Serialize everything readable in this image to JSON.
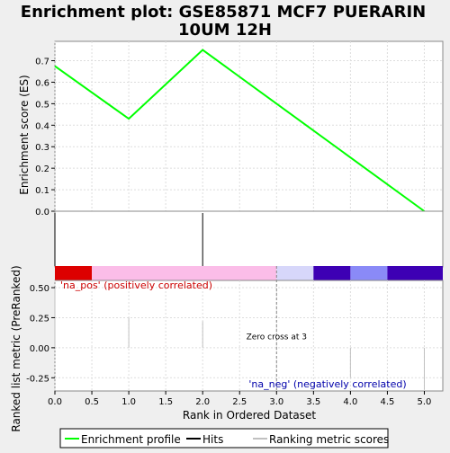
{
  "title_line1": "Enrichment plot: GSE85871 MCF7 PUERARIN",
  "title_line2": "10UM 12H",
  "chart_data": {
    "type": "line",
    "title": "Enrichment plot: GSE85871 MCF7 PUERARIN 10UM 12H",
    "xlabel": "Rank in Ordered Dataset",
    "x_ticks": [
      "0.0",
      "0.5",
      "1.0",
      "1.5",
      "2.0",
      "2.5",
      "3.0",
      "3.5",
      "4.0",
      "4.5",
      "5.0"
    ],
    "xlim": [
      0,
      5.25
    ],
    "grid": true,
    "legend_position": "bottom",
    "es_panel": {
      "ylabel": "Enrichment score (ES)",
      "y_ticks": [
        "0.0",
        "0.1",
        "0.2",
        "0.3",
        "0.4",
        "0.5",
        "0.6",
        "0.7"
      ],
      "ylim": [
        0,
        0.79
      ],
      "series": [
        {
          "name": "Enrichment profile",
          "color": "#00ff00",
          "x": [
            0,
            1,
            2,
            5
          ],
          "y": [
            0.675,
            0.43,
            0.75,
            0.0
          ]
        }
      ]
    },
    "hits_panel": {
      "hits": [
        0,
        2
      ],
      "color_bar": [
        {
          "from": 0,
          "to": 0.5,
          "color": "#dd0000"
        },
        {
          "from": 0.5,
          "to": 3.0,
          "color": "#fbbde8"
        },
        {
          "from": 3.0,
          "to": 3.5,
          "color": "#d7d7fa"
        },
        {
          "from": 3.5,
          "to": 4.0,
          "color": "#3d00b4"
        },
        {
          "from": 4.0,
          "to": 4.5,
          "color": "#8a8af7"
        },
        {
          "from": 4.5,
          "to": 5.25,
          "color": "#3d00b4"
        }
      ]
    },
    "metric_panel": {
      "ylabel": "Ranked list metric (PreRanked)",
      "y_ticks": [
        "0.50",
        "0.25",
        "0.00",
        "-0.25"
      ],
      "ylim": [
        -0.36,
        0.56
      ],
      "bars": {
        "x": [
          0,
          1,
          2,
          3,
          4,
          5
        ],
        "y": [
          0.5,
          0.25,
          0.22,
          0.0,
          -0.25,
          -0.35
        ]
      },
      "zero_cross_label": "Zero cross at 3",
      "zero_cross_x": 3,
      "pos_label": "'na_pos' (positively correlated)",
      "neg_label": "'na_neg' (negatively correlated)",
      "pos_color": "#cc0000",
      "neg_color": "#0000aa"
    },
    "legend": [
      {
        "label": "Enrichment profile",
        "color": "#00ff00"
      },
      {
        "label": "Hits",
        "color": "#000000"
      },
      {
        "label": "Ranking metric scores",
        "color": "#c0c0c0"
      }
    ]
  }
}
